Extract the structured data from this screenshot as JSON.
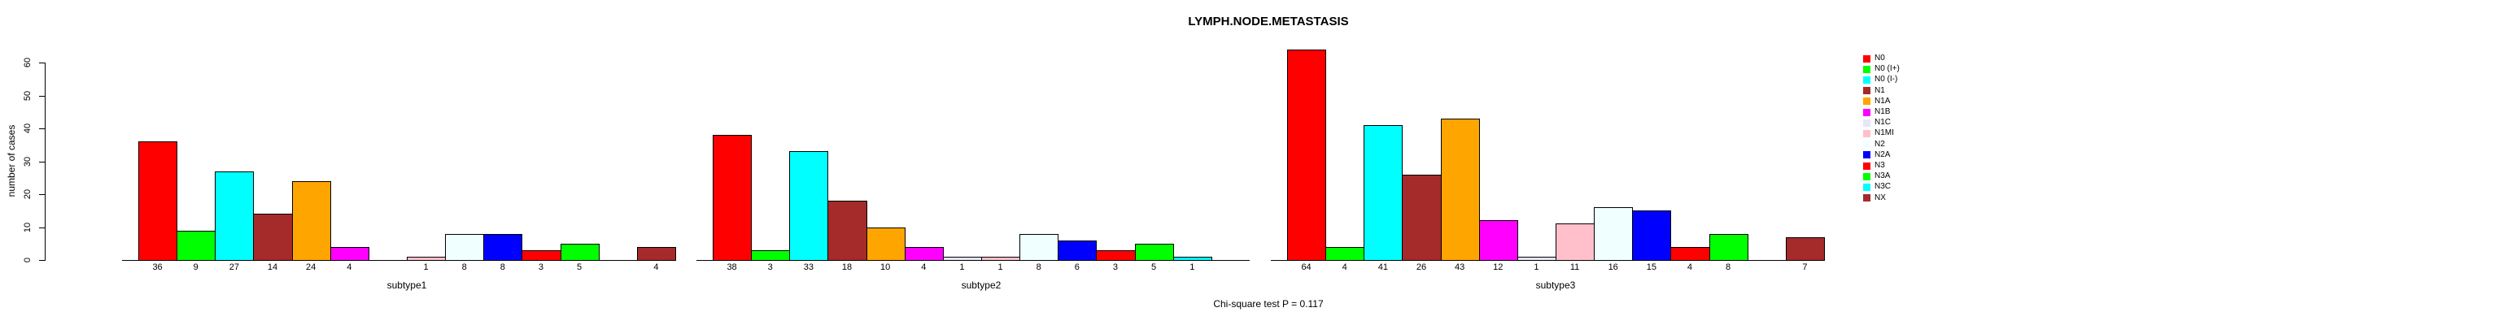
{
  "chart_data": {
    "type": "bar",
    "title": "LYMPH.NODE.METASTASIS",
    "ylabel": "number of cases",
    "xlabel": "",
    "ylim": [
      0,
      60
    ],
    "yticks": [
      0,
      10,
      20,
      30,
      40,
      50,
      60
    ],
    "grid": false,
    "legend_position": "right",
    "annotation": "Chi-square test P = 0.117",
    "categories": [
      "N0",
      "N0 (I+)",
      "N0 (I-)",
      "N1",
      "N1A",
      "N1B",
      "N1C",
      "N1MI",
      "N2",
      "N2A",
      "N3",
      "N3A",
      "N3C",
      "NX"
    ],
    "colors": [
      "#FF0000",
      "#00FF00",
      "#00FFFF",
      "#A52A2A",
      "#FFA500",
      "#FF00FF",
      "#E6E6FA",
      "#FFC0CB",
      "#F0FFFF",
      "#0000FF",
      "#FF0000",
      "#00FF00",
      "#00FFFF",
      "#A52A2A"
    ],
    "groups": [
      "subtype1",
      "subtype2",
      "subtype3"
    ],
    "series": [
      {
        "name": "subtype1",
        "values": [
          36,
          9,
          27,
          14,
          24,
          4,
          0,
          1,
          8,
          8,
          3,
          5,
          0,
          4
        ]
      },
      {
        "name": "subtype2",
        "values": [
          38,
          3,
          33,
          18,
          10,
          4,
          1,
          1,
          8,
          6,
          3,
          5,
          1,
          0
        ]
      },
      {
        "name": "subtype3",
        "values": [
          64,
          4,
          41,
          26,
          43,
          12,
          1,
          11,
          16,
          15,
          4,
          8,
          0,
          7
        ]
      }
    ]
  }
}
